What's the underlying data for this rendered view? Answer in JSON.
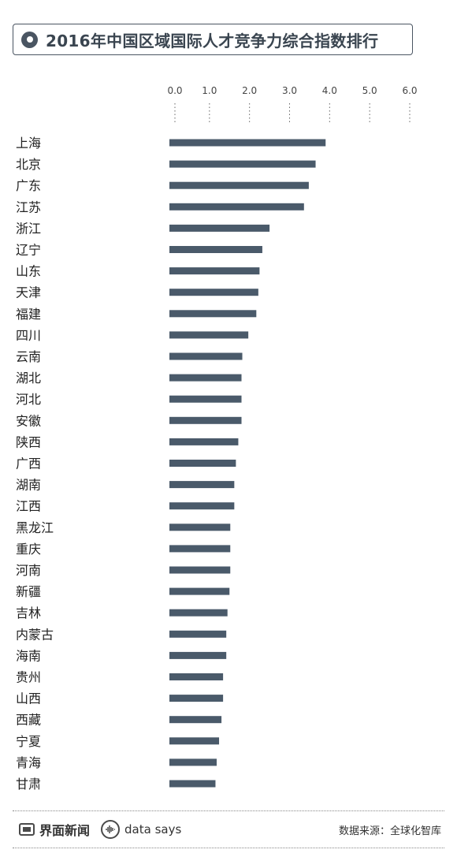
{
  "title": "2016年中国区域国际人才竞争力综合指数排行",
  "footer": {
    "logo_text": "界面新闻",
    "brand_text": "data says",
    "source": "数据来源：全球化智库"
  },
  "chart_data": {
    "type": "bar",
    "orientation": "horizontal",
    "title": "2016年中国区域国际人才竞争力综合指数排行",
    "xlim": [
      0,
      6
    ],
    "x_ticks": [
      "0.0",
      "1.0",
      "2.0",
      "3.0",
      "4.0",
      "5.0",
      "6.0"
    ],
    "grid": false,
    "bar_color": "#4a5a6a",
    "categories": [
      "上海",
      "北京",
      "广东",
      "江苏",
      "浙江",
      "辽宁",
      "山东",
      "天津",
      "福建",
      "四川",
      "云南",
      "湖北",
      "河北",
      "安徽",
      "陕西",
      "广西",
      "湖南",
      "江西",
      "黑龙江",
      "重庆",
      "河南",
      "新疆",
      "吉林",
      "内蒙古",
      "海南",
      "贵州",
      "山西",
      "西藏",
      "宁夏",
      "青海",
      "甘肃"
    ],
    "values": [
      3.9,
      3.65,
      3.48,
      3.36,
      2.5,
      2.32,
      2.25,
      2.22,
      2.17,
      1.97,
      1.82,
      1.8,
      1.8,
      1.8,
      1.72,
      1.66,
      1.62,
      1.62,
      1.52,
      1.52,
      1.52,
      1.5,
      1.45,
      1.42,
      1.42,
      1.34,
      1.34,
      1.3,
      1.24,
      1.18,
      1.15
    ]
  }
}
